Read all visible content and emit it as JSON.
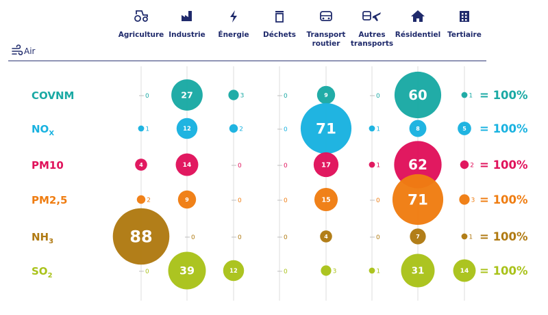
{
  "header": {
    "air_label": "Air",
    "air_icon": "wind-icon"
  },
  "sectors": [
    {
      "label_lines": [
        "Agriculture"
      ],
      "icon": "tractor-icon"
    },
    {
      "label_lines": [
        "Industrie"
      ],
      "icon": "factory-icon"
    },
    {
      "label_lines": [
        "Énergie"
      ],
      "icon": "lightning-icon"
    },
    {
      "label_lines": [
        "Déchets"
      ],
      "icon": "trash-icon"
    },
    {
      "label_lines": [
        "Transport",
        "routier"
      ],
      "icon": "car-icon"
    },
    {
      "label_lines": [
        "Autres",
        "transports"
      ],
      "icon": "train-plane-icon"
    },
    {
      "label_lines": [
        "Résidentiel"
      ],
      "icon": "house-icon"
    },
    {
      "label_lines": [
        "Tertiaire"
      ],
      "icon": "building-icon"
    }
  ],
  "chart_data": {
    "type": "bubble-matrix",
    "unit": "%",
    "categories": [
      "Agriculture",
      "Industrie",
      "Énergie",
      "Déchets",
      "Transport routier",
      "Autres transports",
      "Résidentiel",
      "Tertiaire"
    ],
    "series": [
      {
        "name": "COVNM",
        "main": "COVNM",
        "sub": "",
        "color": "#1aa9a4",
        "values": [
          0,
          27,
          3,
          0,
          9,
          0,
          60,
          1
        ],
        "total": "= 100%"
      },
      {
        "name": "NOX",
        "main": "NO",
        "sub": "X",
        "color": "#19b2e0",
        "values": [
          1,
          12,
          2,
          0,
          71,
          1,
          8,
          5
        ],
        "total": "= 100%"
      },
      {
        "name": "PM10",
        "main": "PM10",
        "sub": "",
        "color": "#e0125b",
        "values": [
          4,
          14,
          0,
          0,
          17,
          1,
          62,
          2
        ],
        "total": "= 100%"
      },
      {
        "name": "PM2,5",
        "main": "PM2,5",
        "sub": "",
        "color": "#ef7d12",
        "values": [
          2,
          9,
          0,
          0,
          15,
          0,
          71,
          3
        ],
        "total": "= 100%"
      },
      {
        "name": "NH3",
        "main": "NH",
        "sub": "3",
        "color": "#b07a12",
        "values": [
          88,
          0,
          0,
          0,
          4,
          0,
          7,
          1
        ],
        "total": "= 100%"
      },
      {
        "name": "SO2",
        "main": "SO",
        "sub": "2",
        "color": "#a9c21a",
        "values": [
          0,
          39,
          12,
          0,
          3,
          1,
          31,
          14
        ],
        "total": "= 100%"
      }
    ]
  }
}
